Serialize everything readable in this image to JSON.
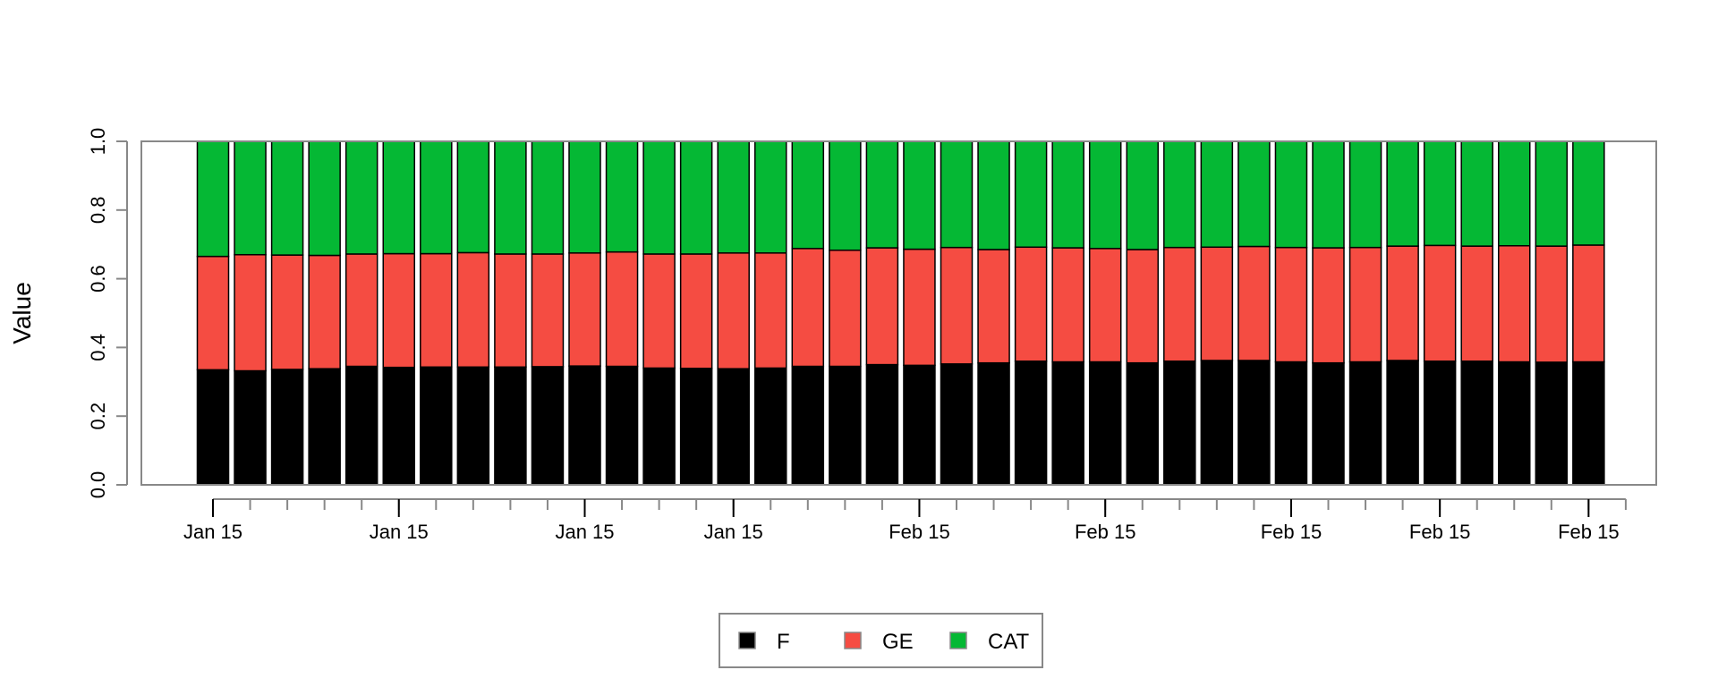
{
  "chart_data": {
    "type": "bar",
    "stacked": true,
    "ylabel": "Value",
    "xlabel": "",
    "ylim": [
      0,
      1
    ],
    "yticks": [
      "0.0",
      "0.2",
      "0.4",
      "0.6",
      "0.8",
      "1.0"
    ],
    "grid": false,
    "legend_position": "bottom-center",
    "series": [
      {
        "name": "F",
        "color": "#000000",
        "values": [
          0.335,
          0.332,
          0.336,
          0.338,
          0.345,
          0.342,
          0.343,
          0.343,
          0.343,
          0.344,
          0.346,
          0.345,
          0.34,
          0.339,
          0.338,
          0.34,
          0.345,
          0.345,
          0.35,
          0.348,
          0.352,
          0.355,
          0.36,
          0.358,
          0.358,
          0.355,
          0.36,
          0.362,
          0.362,
          0.358,
          0.355,
          0.358,
          0.362,
          0.36,
          0.36,
          0.358,
          0.357,
          0.358
        ]
      },
      {
        "name": "GE",
        "color": "#f54c42",
        "values": [
          0.33,
          0.338,
          0.333,
          0.33,
          0.327,
          0.331,
          0.33,
          0.333,
          0.329,
          0.328,
          0.329,
          0.333,
          0.332,
          0.333,
          0.337,
          0.335,
          0.343,
          0.338,
          0.34,
          0.338,
          0.339,
          0.33,
          0.332,
          0.332,
          0.33,
          0.33,
          0.331,
          0.33,
          0.332,
          0.333,
          0.335,
          0.333,
          0.333,
          0.337,
          0.335,
          0.338,
          0.338,
          0.34
        ]
      },
      {
        "name": "CAT",
        "color": "#05b834",
        "values": [
          0.335,
          0.33,
          0.331,
          0.332,
          0.328,
          0.327,
          0.327,
          0.324,
          0.328,
          0.328,
          0.325,
          0.322,
          0.328,
          0.328,
          0.325,
          0.325,
          0.312,
          0.317,
          0.31,
          0.314,
          0.309,
          0.315,
          0.308,
          0.31,
          0.312,
          0.315,
          0.309,
          0.308,
          0.306,
          0.309,
          0.31,
          0.309,
          0.305,
          0.303,
          0.305,
          0.304,
          0.305,
          0.302
        ]
      }
    ],
    "x_tick_labels": [
      {
        "index": 0,
        "label": "Jan 15"
      },
      {
        "index": 5,
        "label": "Jan 15"
      },
      {
        "index": 10,
        "label": "Jan 15"
      },
      {
        "index": 14,
        "label": "Jan 15"
      },
      {
        "index": 19,
        "label": "Feb 15"
      },
      {
        "index": 24,
        "label": "Feb 15"
      },
      {
        "index": 29,
        "label": "Feb 15"
      },
      {
        "index": 33,
        "label": "Feb 15"
      },
      {
        "index": 37,
        "label": "Feb 15"
      }
    ]
  }
}
